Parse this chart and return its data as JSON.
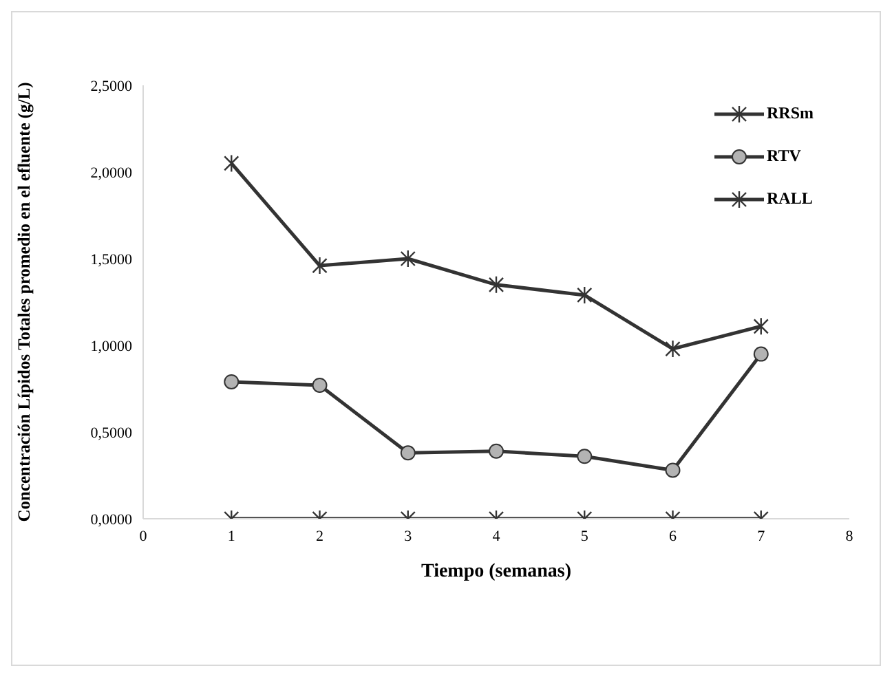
{
  "chart_data": {
    "type": "line",
    "xlabel": "Tiempo (semanas)",
    "ylabel": "Concentración Lípidos Totales promedio en el efluente (g/L)",
    "x": [
      1,
      2,
      3,
      4,
      5,
      6,
      7
    ],
    "series": [
      {
        "name": "RRSm",
        "color": "#333333",
        "marker": "cross",
        "values": [
          2.05,
          1.46,
          1.5,
          1.35,
          1.29,
          0.98,
          1.11
        ]
      },
      {
        "name": "RTV",
        "color": "#333333",
        "marker": "circle",
        "values": [
          0.79,
          0.77,
          0.38,
          0.39,
          0.36,
          0.28,
          0.95
        ]
      },
      {
        "name": "RALL",
        "color": "#333333",
        "marker": "cross",
        "values": [
          0,
          0,
          0,
          0,
          0,
          0,
          0
        ]
      }
    ],
    "xlim": [
      0,
      8
    ],
    "xticks": [
      0,
      1,
      2,
      3,
      4,
      5,
      6,
      7,
      8
    ],
    "ylim": [
      0,
      2.5
    ],
    "yticks": [
      {
        "value": 0,
        "label": "0,0000"
      },
      {
        "value": 0.5,
        "label": "0,5000"
      },
      {
        "value": 1,
        "label": "1,0000"
      },
      {
        "value": 1.5,
        "label": "1,5000"
      },
      {
        "value": 2,
        "label": "2,0000"
      },
      {
        "value": 2.5,
        "label": "2,5000"
      }
    ],
    "grid": false,
    "legend": "top right",
    "line_style": "solid"
  }
}
